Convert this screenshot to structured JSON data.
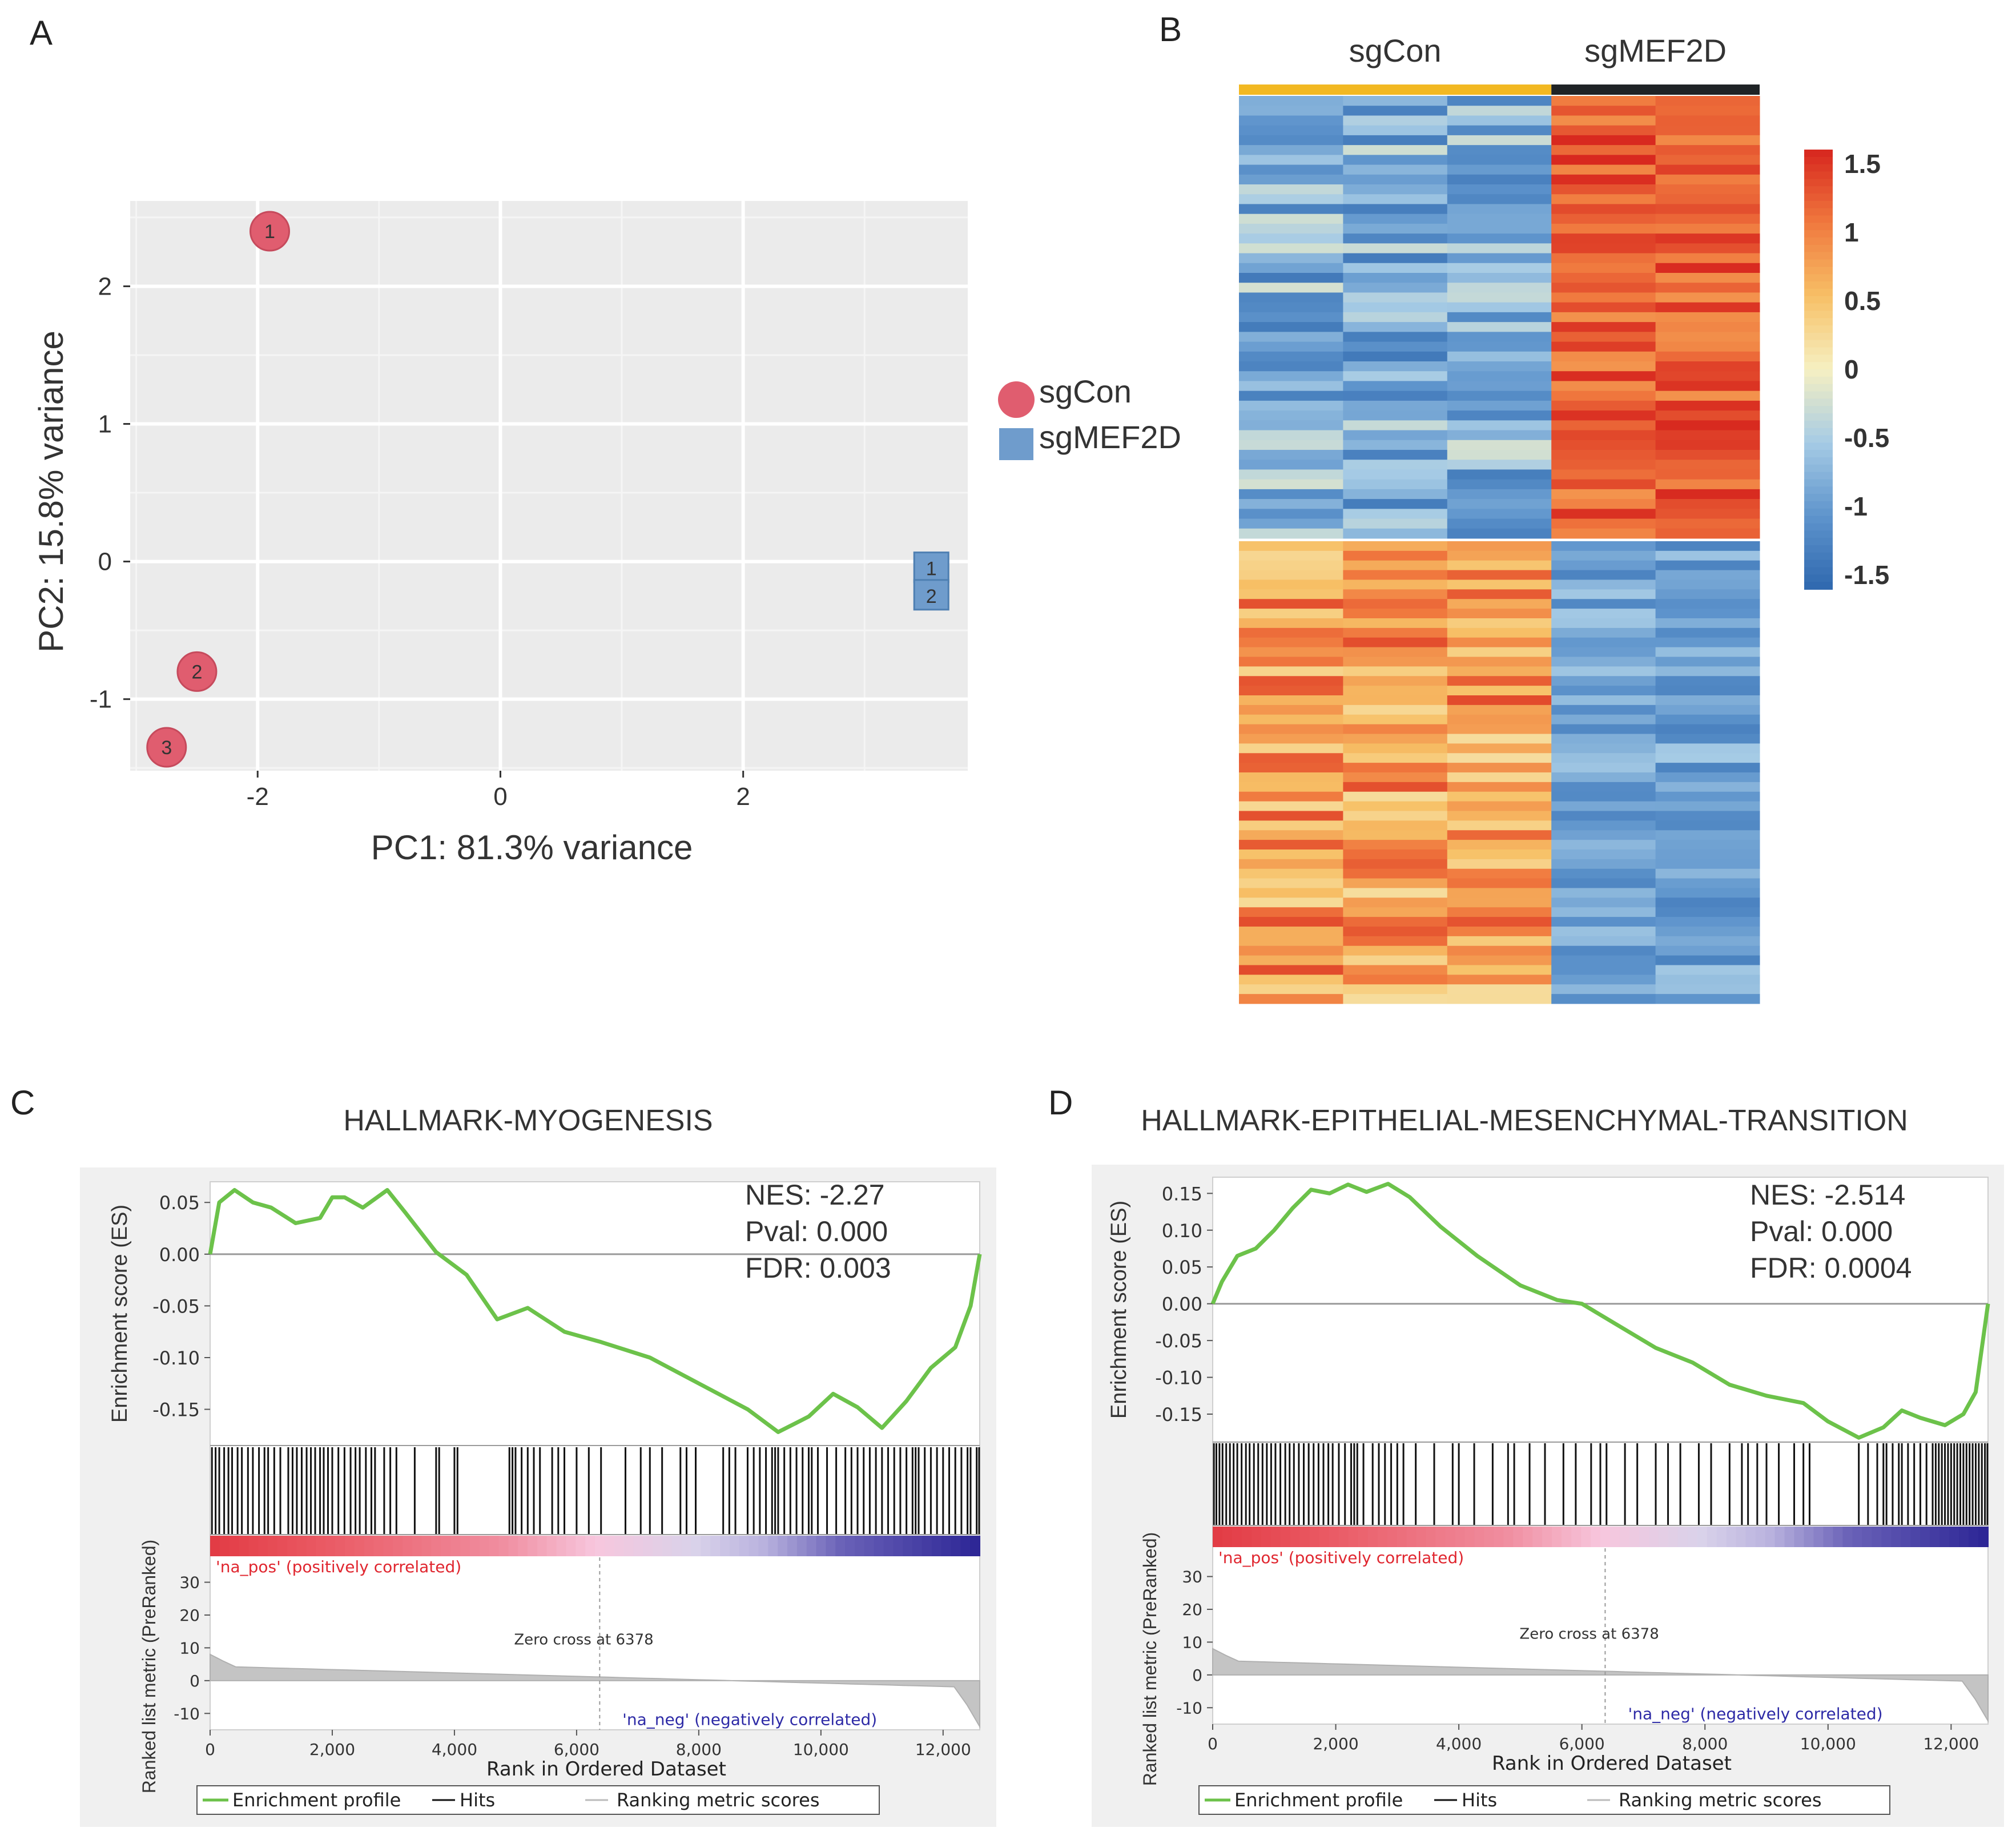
{
  "panels": {
    "a": "A",
    "b": "B",
    "c": "C",
    "d": "D"
  },
  "chart_data": [
    {
      "id": "pca",
      "type": "scatter",
      "title": "",
      "xlabel": "PC1: 81.3% variance",
      "ylabel": "PC2: 15.8% variance",
      "xlim": [
        -3.05,
        3.85
      ],
      "ylim": [
        -1.52,
        2.62
      ],
      "xticks": [
        -2,
        0,
        2
      ],
      "yticks": [
        -1,
        0,
        1,
        2
      ],
      "grid": true,
      "legend": {
        "placement": "right",
        "entries": [
          "sgCon",
          "sgMEF2D"
        ]
      },
      "series": [
        {
          "name": "sgCon",
          "marker": "circle",
          "color": "#e05d6f",
          "points": [
            {
              "label": "1",
              "x": -1.9,
              "y": 2.4
            },
            {
              "label": "2",
              "x": -2.5,
              "y": -0.8
            },
            {
              "label": "3",
              "x": -2.75,
              "y": -1.35
            }
          ]
        },
        {
          "name": "sgMEF2D",
          "marker": "square",
          "color": "#6f9ccc",
          "points": [
            {
              "label": "1",
              "x": 3.55,
              "y": -0.05
            },
            {
              "label": "2",
              "x": 3.55,
              "y": -0.25
            }
          ]
        }
      ]
    },
    {
      "id": "heatmap",
      "type": "heatmap",
      "title": "",
      "groups": [
        {
          "name": "sgCon",
          "columns": 3,
          "color": "#f2b822"
        },
        {
          "name": "sgMEF2D",
          "columns": 2,
          "color": "#1f2326"
        }
      ],
      "rows_up": 45,
      "rows_down": 48,
      "colorbar": {
        "range": [
          -1.5,
          1.5
        ],
        "ticks": [
          "1.5",
          "1",
          "0.5",
          "0",
          "-0.5",
          "-1",
          "-1.5"
        ]
      },
      "pattern": "upper block: sgCon low (~-0.8), sgMEF2D high (~1.2); lower block: sgCon high (~0.8), sgMEF2D low (~-0.9)"
    },
    {
      "id": "gsea_myogenesis",
      "type": "line",
      "title": "HALLMARK-MYOGENESIS",
      "ylabel": "Enrichment score (ES)",
      "ylabel2": "Ranked list metric (PreRanked)",
      "xlabel": "Rank in Ordered Dataset",
      "xlim": [
        0,
        12600
      ],
      "ylim": [
        -0.185,
        0.07
      ],
      "xticks": [
        "0",
        "2,000",
        "4,000",
        "6,000",
        "8,000",
        "10,000",
        "12,000"
      ],
      "yticks": [
        "0.05",
        "0.00",
        "-0.05",
        "-0.10",
        "-0.15"
      ],
      "metric_ticks": [
        "30",
        "20",
        "10",
        "0",
        "-10"
      ],
      "stats": {
        "nes": "NES: -2.27",
        "pval": "Pval: 0.000",
        "fdr": "FDR: 0.003"
      },
      "pos_label": "'na_pos' (positively correlated)",
      "neg_label": "'na_neg' (negatively correlated)",
      "zero_cross": "Zero cross at 6378",
      "zero_cross_rank": 6378,
      "legend": [
        "Enrichment profile",
        "Hits",
        "Ranking metric scores"
      ],
      "profile": [
        [
          0,
          0.0
        ],
        [
          150,
          0.05
        ],
        [
          400,
          0.062
        ],
        [
          700,
          0.05
        ],
        [
          1000,
          0.045
        ],
        [
          1400,
          0.03
        ],
        [
          1800,
          0.035
        ],
        [
          2000,
          0.055
        ],
        [
          2200,
          0.055
        ],
        [
          2500,
          0.045
        ],
        [
          2900,
          0.062
        ],
        [
          3200,
          0.04
        ],
        [
          3700,
          0.002
        ],
        [
          4200,
          -0.02
        ],
        [
          4700,
          -0.063
        ],
        [
          5200,
          -0.052
        ],
        [
          5800,
          -0.075
        ],
        [
          6400,
          -0.085
        ],
        [
          7200,
          -0.1
        ],
        [
          8000,
          -0.125
        ],
        [
          8800,
          -0.15
        ],
        [
          9300,
          -0.172
        ],
        [
          9800,
          -0.157
        ],
        [
          10200,
          -0.135
        ],
        [
          10600,
          -0.148
        ],
        [
          11000,
          -0.168
        ],
        [
          11400,
          -0.142
        ],
        [
          11800,
          -0.11
        ],
        [
          12200,
          -0.09
        ],
        [
          12450,
          -0.05
        ],
        [
          12600,
          0.0
        ]
      ],
      "hits": [
        30,
        90,
        150,
        230,
        300,
        360,
        450,
        520,
        620,
        700,
        800,
        890,
        950,
        1050,
        1150,
        1280,
        1350,
        1420,
        1500,
        1580,
        1650,
        1720,
        1800,
        1860,
        1930,
        2000,
        2100,
        2200,
        2300,
        2380,
        2450,
        2550,
        2640,
        2700,
        2850,
        2950,
        3050,
        3350,
        3700,
        3750,
        4000,
        4050,
        4900,
        4950,
        5000,
        5100,
        5200,
        5300,
        5400,
        5600,
        5700,
        5800,
        6000,
        6200,
        6400,
        6800,
        7050,
        7200,
        7400,
        7700,
        7800,
        7950,
        8400,
        8500,
        8600,
        8800,
        8900,
        9000,
        9100,
        9200,
        9250,
        9300,
        9400,
        9500,
        9600,
        9700,
        9800,
        9850,
        9950,
        10100,
        10250,
        10400,
        10500,
        10600,
        10700,
        10800,
        10900,
        11000,
        11100,
        11200,
        11300,
        11400,
        11500,
        11550,
        11600,
        11700,
        11800,
        11900,
        12000,
        12100,
        12200,
        12300,
        12400,
        12450,
        12550,
        12590
      ]
    },
    {
      "id": "gsea_emt",
      "type": "line",
      "title": "HALLMARK-EPITHELIAL-MESENCHYMAL-TRANSITION",
      "ylabel": "Enrichment score (ES)",
      "ylabel2": "Ranked list metric (PreRanked)",
      "xlabel": "Rank in Ordered Dataset",
      "xlim": [
        0,
        12600
      ],
      "ylim": [
        -0.188,
        0.172
      ],
      "xticks": [
        "0",
        "2,000",
        "4,000",
        "6,000",
        "8,000",
        "10,000",
        "12,000"
      ],
      "yticks": [
        "0.15",
        "0.10",
        "0.05",
        "0.00",
        "-0.05",
        "-0.10",
        "-0.15"
      ],
      "metric_ticks": [
        "30",
        "20",
        "10",
        "0",
        "-10"
      ],
      "stats": {
        "nes": "NES: -2.514",
        "pval": "Pval: 0.000",
        "fdr": "FDR: 0.0004"
      },
      "pos_label": "'na_pos' (positively correlated)",
      "neg_label": "'na_neg' (negatively correlated)",
      "zero_cross": "Zero cross at 6378",
      "zero_cross_rank": 6378,
      "legend": [
        "Enrichment profile",
        "Hits",
        "Ranking metric scores"
      ],
      "profile": [
        [
          0,
          0.0
        ],
        [
          150,
          0.03
        ],
        [
          400,
          0.065
        ],
        [
          700,
          0.075
        ],
        [
          1000,
          0.1
        ],
        [
          1300,
          0.13
        ],
        [
          1600,
          0.155
        ],
        [
          1900,
          0.15
        ],
        [
          2200,
          0.162
        ],
        [
          2500,
          0.152
        ],
        [
          2850,
          0.163
        ],
        [
          3200,
          0.145
        ],
        [
          3700,
          0.105
        ],
        [
          4300,
          0.065
        ],
        [
          5000,
          0.025
        ],
        [
          5600,
          0.005
        ],
        [
          6000,
          0.0
        ],
        [
          6600,
          -0.03
        ],
        [
          7200,
          -0.06
        ],
        [
          7800,
          -0.08
        ],
        [
          8400,
          -0.11
        ],
        [
          9000,
          -0.125
        ],
        [
          9600,
          -0.135
        ],
        [
          10000,
          -0.16
        ],
        [
          10500,
          -0.182
        ],
        [
          10900,
          -0.168
        ],
        [
          11200,
          -0.145
        ],
        [
          11500,
          -0.155
        ],
        [
          11900,
          -0.165
        ],
        [
          12200,
          -0.15
        ],
        [
          12400,
          -0.12
        ],
        [
          12600,
          0.0
        ]
      ],
      "hits": [
        20,
        60,
        110,
        160,
        220,
        280,
        340,
        400,
        470,
        540,
        600,
        670,
        740,
        810,
        880,
        950,
        1020,
        1100,
        1180,
        1250,
        1320,
        1400,
        1480,
        1560,
        1640,
        1720,
        1800,
        1880,
        1950,
        2050,
        2150,
        2250,
        2300,
        2350,
        2450,
        2600,
        2700,
        2800,
        2900,
        3000,
        3100,
        3300,
        3600,
        3900,
        4000,
        4250,
        4550,
        4800,
        4900,
        5150,
        5400,
        5700,
        5900,
        6150,
        6300,
        6400,
        6700,
        6900,
        7200,
        7400,
        7600,
        7900,
        8100,
        8400,
        8600,
        8700,
        8850,
        9000,
        9200,
        9450,
        9600,
        9700,
        10500,
        10650,
        10800,
        10900,
        10950,
        11050,
        11150,
        11200,
        11300,
        11400,
        11500,
        11600,
        11700,
        11750,
        11800,
        11850,
        11900,
        11950,
        12000,
        12050,
        12100,
        12150,
        12200,
        12250,
        12300,
        12350,
        12400,
        12450,
        12500,
        12550,
        12590
      ]
    }
  ]
}
